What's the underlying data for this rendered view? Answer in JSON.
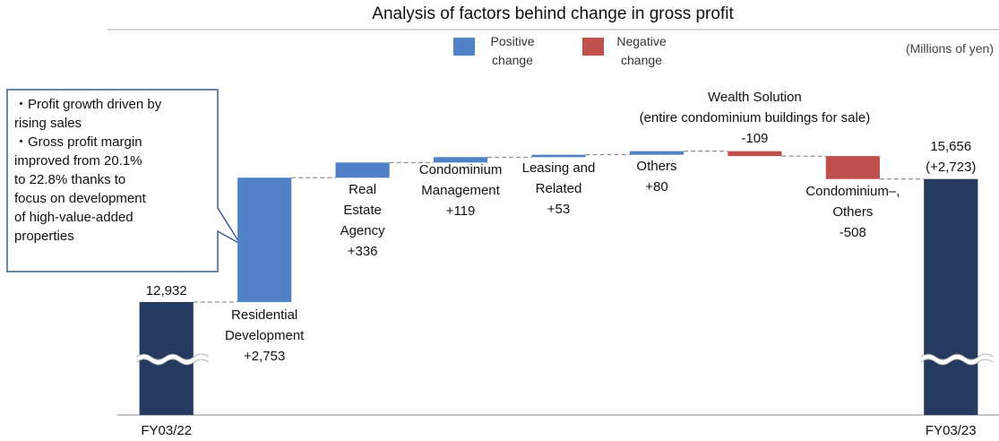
{
  "chart_data": {
    "type": "waterfall",
    "title": "Analysis of factors behind change in gross profit",
    "unit_label": "(Millions of yen)",
    "categories": [
      "FY03/22",
      "Residential\nDevelopment",
      "Real\nEstate\nAgency",
      "Condominium\nManagement",
      "Leasing and\nRelated",
      "Others",
      "Wealth Solution\n(entire condominium buildings for sale)",
      "Condominium–,\nOthers",
      "FY03/23"
    ],
    "values": [
      12932,
      2753,
      336,
      119,
      53,
      80,
      -109,
      -508,
      15656
    ],
    "value_labels": [
      "12,932",
      "+2,753",
      "+336",
      "+119",
      "+53",
      "+80",
      "-109",
      "-508",
      "15,656"
    ],
    "total_change_label": "(+2,723)",
    "total_color": "#243a5e",
    "legend": [
      {
        "name": "Positive\nchange",
        "color": "#4f81c4"
      },
      {
        "name": "Negative\nchange",
        "color": "#c0504d"
      }
    ],
    "ylim": [
      10430,
      17000
    ],
    "axis_break": true,
    "callout": [
      "・Profit growth driven by\nrising sales",
      "・Gross profit margin\nimproved from 20.1%\nto 22.8% thanks to\nfocus on development\nof high-value-added\nproperties"
    ]
  }
}
